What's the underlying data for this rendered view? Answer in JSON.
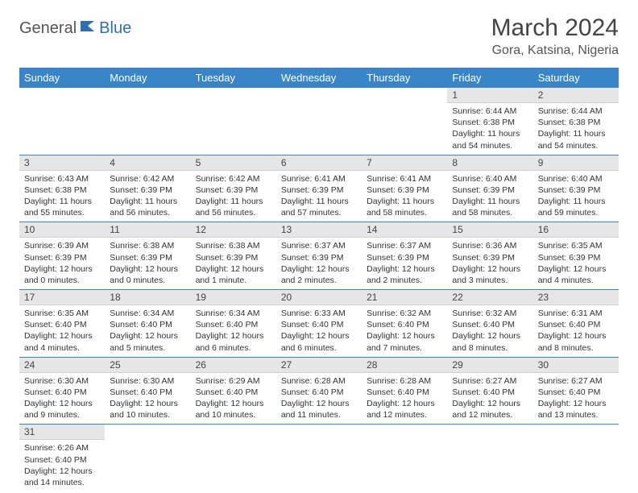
{
  "logo": {
    "part1": "General",
    "part2": "Blue"
  },
  "title": "March 2024",
  "location": "Gora, Katsina, Nigeria",
  "colors": {
    "headerBg": "#3a85c7",
    "headerText": "#ffffff",
    "dayNumBg": "#e6e6e6",
    "rowDivider": "#3a85c7",
    "logoAccent": "#2f6fb0"
  },
  "weekdays": [
    "Sunday",
    "Monday",
    "Tuesday",
    "Wednesday",
    "Thursday",
    "Friday",
    "Saturday"
  ],
  "weeks": [
    [
      null,
      null,
      null,
      null,
      null,
      {
        "day": "1",
        "sunrise": "Sunrise: 6:44 AM",
        "sunset": "Sunset: 6:38 PM",
        "daylight": "Daylight: 11 hours and 54 minutes."
      },
      {
        "day": "2",
        "sunrise": "Sunrise: 6:44 AM",
        "sunset": "Sunset: 6:38 PM",
        "daylight": "Daylight: 11 hours and 54 minutes."
      }
    ],
    [
      {
        "day": "3",
        "sunrise": "Sunrise: 6:43 AM",
        "sunset": "Sunset: 6:38 PM",
        "daylight": "Daylight: 11 hours and 55 minutes."
      },
      {
        "day": "4",
        "sunrise": "Sunrise: 6:42 AM",
        "sunset": "Sunset: 6:39 PM",
        "daylight": "Daylight: 11 hours and 56 minutes."
      },
      {
        "day": "5",
        "sunrise": "Sunrise: 6:42 AM",
        "sunset": "Sunset: 6:39 PM",
        "daylight": "Daylight: 11 hours and 56 minutes."
      },
      {
        "day": "6",
        "sunrise": "Sunrise: 6:41 AM",
        "sunset": "Sunset: 6:39 PM",
        "daylight": "Daylight: 11 hours and 57 minutes."
      },
      {
        "day": "7",
        "sunrise": "Sunrise: 6:41 AM",
        "sunset": "Sunset: 6:39 PM",
        "daylight": "Daylight: 11 hours and 58 minutes."
      },
      {
        "day": "8",
        "sunrise": "Sunrise: 6:40 AM",
        "sunset": "Sunset: 6:39 PM",
        "daylight": "Daylight: 11 hours and 58 minutes."
      },
      {
        "day": "9",
        "sunrise": "Sunrise: 6:40 AM",
        "sunset": "Sunset: 6:39 PM",
        "daylight": "Daylight: 11 hours and 59 minutes."
      }
    ],
    [
      {
        "day": "10",
        "sunrise": "Sunrise: 6:39 AM",
        "sunset": "Sunset: 6:39 PM",
        "daylight": "Daylight: 12 hours and 0 minutes."
      },
      {
        "day": "11",
        "sunrise": "Sunrise: 6:38 AM",
        "sunset": "Sunset: 6:39 PM",
        "daylight": "Daylight: 12 hours and 0 minutes."
      },
      {
        "day": "12",
        "sunrise": "Sunrise: 6:38 AM",
        "sunset": "Sunset: 6:39 PM",
        "daylight": "Daylight: 12 hours and 1 minute."
      },
      {
        "day": "13",
        "sunrise": "Sunrise: 6:37 AM",
        "sunset": "Sunset: 6:39 PM",
        "daylight": "Daylight: 12 hours and 2 minutes."
      },
      {
        "day": "14",
        "sunrise": "Sunrise: 6:37 AM",
        "sunset": "Sunset: 6:39 PM",
        "daylight": "Daylight: 12 hours and 2 minutes."
      },
      {
        "day": "15",
        "sunrise": "Sunrise: 6:36 AM",
        "sunset": "Sunset: 6:39 PM",
        "daylight": "Daylight: 12 hours and 3 minutes."
      },
      {
        "day": "16",
        "sunrise": "Sunrise: 6:35 AM",
        "sunset": "Sunset: 6:39 PM",
        "daylight": "Daylight: 12 hours and 4 minutes."
      }
    ],
    [
      {
        "day": "17",
        "sunrise": "Sunrise: 6:35 AM",
        "sunset": "Sunset: 6:40 PM",
        "daylight": "Daylight: 12 hours and 4 minutes."
      },
      {
        "day": "18",
        "sunrise": "Sunrise: 6:34 AM",
        "sunset": "Sunset: 6:40 PM",
        "daylight": "Daylight: 12 hours and 5 minutes."
      },
      {
        "day": "19",
        "sunrise": "Sunrise: 6:34 AM",
        "sunset": "Sunset: 6:40 PM",
        "daylight": "Daylight: 12 hours and 6 minutes."
      },
      {
        "day": "20",
        "sunrise": "Sunrise: 6:33 AM",
        "sunset": "Sunset: 6:40 PM",
        "daylight": "Daylight: 12 hours and 6 minutes."
      },
      {
        "day": "21",
        "sunrise": "Sunrise: 6:32 AM",
        "sunset": "Sunset: 6:40 PM",
        "daylight": "Daylight: 12 hours and 7 minutes."
      },
      {
        "day": "22",
        "sunrise": "Sunrise: 6:32 AM",
        "sunset": "Sunset: 6:40 PM",
        "daylight": "Daylight: 12 hours and 8 minutes."
      },
      {
        "day": "23",
        "sunrise": "Sunrise: 6:31 AM",
        "sunset": "Sunset: 6:40 PM",
        "daylight": "Daylight: 12 hours and 8 minutes."
      }
    ],
    [
      {
        "day": "24",
        "sunrise": "Sunrise: 6:30 AM",
        "sunset": "Sunset: 6:40 PM",
        "daylight": "Daylight: 12 hours and 9 minutes."
      },
      {
        "day": "25",
        "sunrise": "Sunrise: 6:30 AM",
        "sunset": "Sunset: 6:40 PM",
        "daylight": "Daylight: 12 hours and 10 minutes."
      },
      {
        "day": "26",
        "sunrise": "Sunrise: 6:29 AM",
        "sunset": "Sunset: 6:40 PM",
        "daylight": "Daylight: 12 hours and 10 minutes."
      },
      {
        "day": "27",
        "sunrise": "Sunrise: 6:28 AM",
        "sunset": "Sunset: 6:40 PM",
        "daylight": "Daylight: 12 hours and 11 minutes."
      },
      {
        "day": "28",
        "sunrise": "Sunrise: 6:28 AM",
        "sunset": "Sunset: 6:40 PM",
        "daylight": "Daylight: 12 hours and 12 minutes."
      },
      {
        "day": "29",
        "sunrise": "Sunrise: 6:27 AM",
        "sunset": "Sunset: 6:40 PM",
        "daylight": "Daylight: 12 hours and 12 minutes."
      },
      {
        "day": "30",
        "sunrise": "Sunrise: 6:27 AM",
        "sunset": "Sunset: 6:40 PM",
        "daylight": "Daylight: 12 hours and 13 minutes."
      }
    ],
    [
      {
        "day": "31",
        "sunrise": "Sunrise: 6:26 AM",
        "sunset": "Sunset: 6:40 PM",
        "daylight": "Daylight: 12 hours and 14 minutes."
      },
      null,
      null,
      null,
      null,
      null,
      null
    ]
  ]
}
